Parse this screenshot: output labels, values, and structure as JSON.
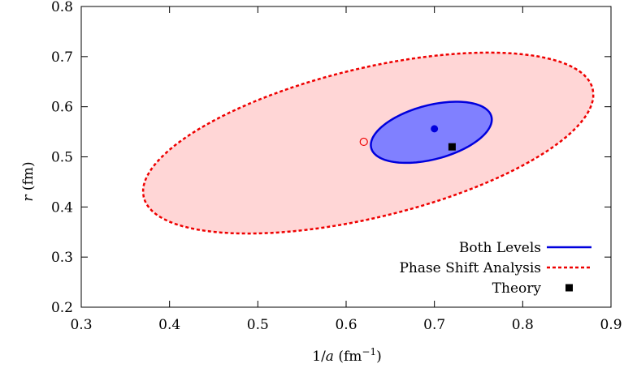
{
  "chart_data": {
    "type": "scatter",
    "xlabel": "1/a (fm⁻¹)",
    "ylabel": "r (fm)",
    "xlim": [
      0.3,
      0.9
    ],
    "ylim": [
      0.2,
      0.8
    ],
    "xticks": [
      0.3,
      0.4,
      0.5,
      0.6,
      0.7,
      0.8,
      0.9
    ],
    "yticks": [
      0.2,
      0.3,
      0.4,
      0.5,
      0.6,
      0.7,
      0.8
    ],
    "grid": false,
    "legend_position": "bottom-right",
    "ellipses": [
      {
        "name": "Phase Shift Analysis",
        "center": [
          0.62,
          0.53
        ],
        "x_range": [
          0.37,
          0.88
        ],
        "y_range": [
          0.347,
          0.708
        ],
        "fill": "#ffd6d6",
        "stroke": "#ee0000",
        "dashed": true,
        "center_marker": "open-circle"
      },
      {
        "name": "Both Levels",
        "center": [
          0.7,
          0.556
        ],
        "x_range": [
          0.628,
          0.765
        ],
        "y_range": [
          0.488,
          0.61
        ],
        "fill": "#8080ff",
        "stroke": "#0000dd",
        "dashed": false,
        "center_marker": "filled-circle"
      }
    ],
    "points": [
      {
        "name": "Theory",
        "x": 0.72,
        "y": 0.52,
        "marker": "filled-square",
        "color": "#000000"
      }
    ],
    "legend": [
      {
        "label": "Both Levels",
        "style": "solid-line",
        "color": "#0000dd"
      },
      {
        "label": "Phase Shift Analysis",
        "style": "dashed-line",
        "color": "#ee0000"
      },
      {
        "label": "Theory",
        "style": "square",
        "color": "#000000"
      }
    ]
  }
}
